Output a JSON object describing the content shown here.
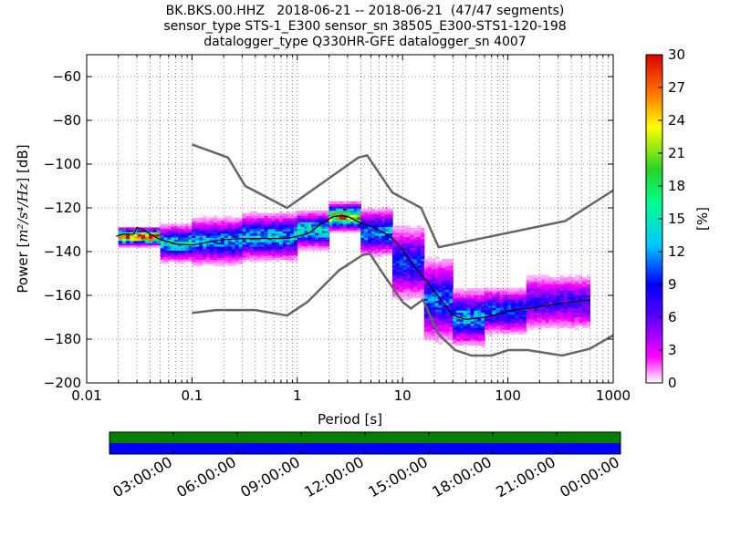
{
  "header": {
    "title_lines": [
      "BK.BKS.00.HHZ   2018-06-21 -- 2018-06-21  (47/47 segments)",
      "sensor_type STS-1_E300 sensor_sn 38505_E300-STS1-120-198",
      "datalogger_type Q330HR-GFE datalogger_sn 4007"
    ]
  },
  "colors": {
    "noise_model": "#666666",
    "mean_line": "#000000",
    "timeline_green": "#007f00",
    "timeline_blue": "#0000ff",
    "grid": "#000000"
  },
  "chart_data": [
    {
      "type": "heatmap",
      "xlabel": "Period [s]",
      "ylabel_prefix": "Power [",
      "ylabel_unit": "m²/s⁴/Hz",
      "ylabel_suffix": "] [dB]",
      "x_scale": "log",
      "xlim": [
        0.01,
        1000
      ],
      "ylim": [
        -200,
        -50
      ],
      "x_ticks": [
        0.01,
        0.1,
        1,
        10,
        100,
        1000
      ],
      "x_tick_labels": [
        "0.01",
        "0.1",
        "1",
        "10",
        "100",
        "1000"
      ],
      "y_ticks": [
        -200,
        -180,
        -160,
        -140,
        -120,
        -100,
        -80,
        -60
      ],
      "y_tick_labels": [
        "−200",
        "−180",
        "−160",
        "−140",
        "−120",
        "−100",
        "−80",
        "−60"
      ],
      "grid": "dotted",
      "colorbar": {
        "label": "[%]",
        "range": [
          0,
          30
        ],
        "ticks": [
          0,
          3,
          6,
          9,
          12,
          15,
          18,
          21,
          24,
          27,
          30
        ],
        "tick_labels": [
          "0",
          "3",
          "6",
          "9",
          "12",
          "15",
          "18",
          "21",
          "24",
          "27",
          "30"
        ]
      },
      "noise_model_high": [
        [
          0.1,
          -91
        ],
        [
          0.22,
          -97
        ],
        [
          0.32,
          -110
        ],
        [
          0.8,
          -120
        ],
        [
          3.8,
          -97
        ],
        [
          4.6,
          -96
        ],
        [
          8,
          -113
        ],
        [
          15,
          -120
        ],
        [
          22,
          -138
        ],
        [
          350,
          -126
        ],
        [
          1000,
          -112
        ]
      ],
      "noise_model_low": [
        [
          0.1,
          -168
        ],
        [
          0.17,
          -166.7
        ],
        [
          0.4,
          -166.7
        ],
        [
          0.8,
          -169.2
        ],
        [
          1.25,
          -163
        ],
        [
          2.5,
          -148.5
        ],
        [
          4.2,
          -141.5
        ],
        [
          4.9,
          -141
        ],
        [
          6.5,
          -150
        ],
        [
          10,
          -163
        ],
        [
          12,
          -166
        ],
        [
          15.6,
          -162
        ],
        [
          21.9,
          -177.7
        ],
        [
          31.6,
          -185
        ],
        [
          45,
          -187.5
        ],
        [
          70,
          -187.5
        ],
        [
          101,
          -185
        ],
        [
          154,
          -185
        ],
        [
          328,
          -187.5
        ],
        [
          600,
          -184.4
        ],
        [
          1000,
          -178.2
        ]
      ],
      "mean_curve": [
        [
          0.019,
          -133
        ],
        [
          0.022,
          -132
        ],
        [
          0.028,
          -132
        ],
        [
          0.03,
          -129
        ],
        [
          0.035,
          -130
        ],
        [
          0.04,
          -132
        ],
        [
          0.05,
          -134.5
        ],
        [
          0.07,
          -136.5
        ],
        [
          0.1,
          -137
        ],
        [
          0.15,
          -135.5
        ],
        [
          0.2,
          -134.5
        ],
        [
          0.3,
          -134
        ],
        [
          0.5,
          -134
        ],
        [
          0.8,
          -134
        ],
        [
          1,
          -133
        ],
        [
          1.3,
          -131.5
        ],
        [
          1.7,
          -127
        ],
        [
          2.2,
          -124
        ],
        [
          2.7,
          -123.5
        ],
        [
          3.2,
          -124.5
        ],
        [
          4,
          -127
        ],
        [
          5,
          -128.5
        ],
        [
          6.5,
          -131
        ],
        [
          8,
          -134
        ],
        [
          10,
          -139
        ],
        [
          13,
          -147
        ],
        [
          16,
          -152
        ],
        [
          20,
          -158
        ],
        [
          25,
          -164
        ],
        [
          30,
          -169
        ],
        [
          40,
          -171
        ],
        [
          60,
          -170
        ],
        [
          80,
          -168.5
        ],
        [
          100,
          -167
        ],
        [
          150,
          -166
        ],
        [
          250,
          -164.5
        ],
        [
          400,
          -163
        ],
        [
          600,
          -162
        ]
      ],
      "density_bands": [
        {
          "from": 0.02,
          "to": 0.05,
          "center": -133,
          "spread": 2,
          "peak": 28
        },
        {
          "from": 0.05,
          "to": 0.1,
          "center": -136,
          "spread": 4,
          "peak": 14
        },
        {
          "from": 0.1,
          "to": 0.3,
          "center": -135,
          "spread": 5,
          "peak": 12
        },
        {
          "from": 0.3,
          "to": 1,
          "center": -133,
          "spread": 5,
          "peak": 13
        },
        {
          "from": 1,
          "to": 2,
          "center": -130,
          "spread": 4,
          "peak": 15
        },
        {
          "from": 2,
          "to": 4,
          "center": -124,
          "spread": 3,
          "peak": 24
        },
        {
          "from": 4,
          "to": 8,
          "center": -131,
          "spread": 5,
          "peak": 12
        },
        {
          "from": 8,
          "to": 16,
          "center": -145,
          "spread": 8,
          "peak": 9
        },
        {
          "from": 16,
          "to": 30,
          "center": -162,
          "spread": 9,
          "peak": 10
        },
        {
          "from": 30,
          "to": 60,
          "center": -170,
          "spread": 6,
          "peak": 12
        },
        {
          "from": 60,
          "to": 150,
          "center": -167,
          "spread": 5,
          "peak": 10
        },
        {
          "from": 150,
          "to": 600,
          "center": -163,
          "spread": 6,
          "peak": 7
        }
      ]
    },
    {
      "type": "timeline",
      "x_tick_labels": [
        "03:00:00",
        "06:00:00",
        "09:00:00",
        "12:00:00",
        "15:00:00",
        "18:00:00",
        "21:00:00",
        "00:00:00"
      ],
      "rows": [
        {
          "name": "green",
          "coverage": [
            [
              0,
              24
            ]
          ]
        },
        {
          "name": "blue",
          "coverage": [
            [
              0,
              24
            ]
          ]
        }
      ],
      "xlim_hours": [
        0,
        24
      ]
    }
  ]
}
